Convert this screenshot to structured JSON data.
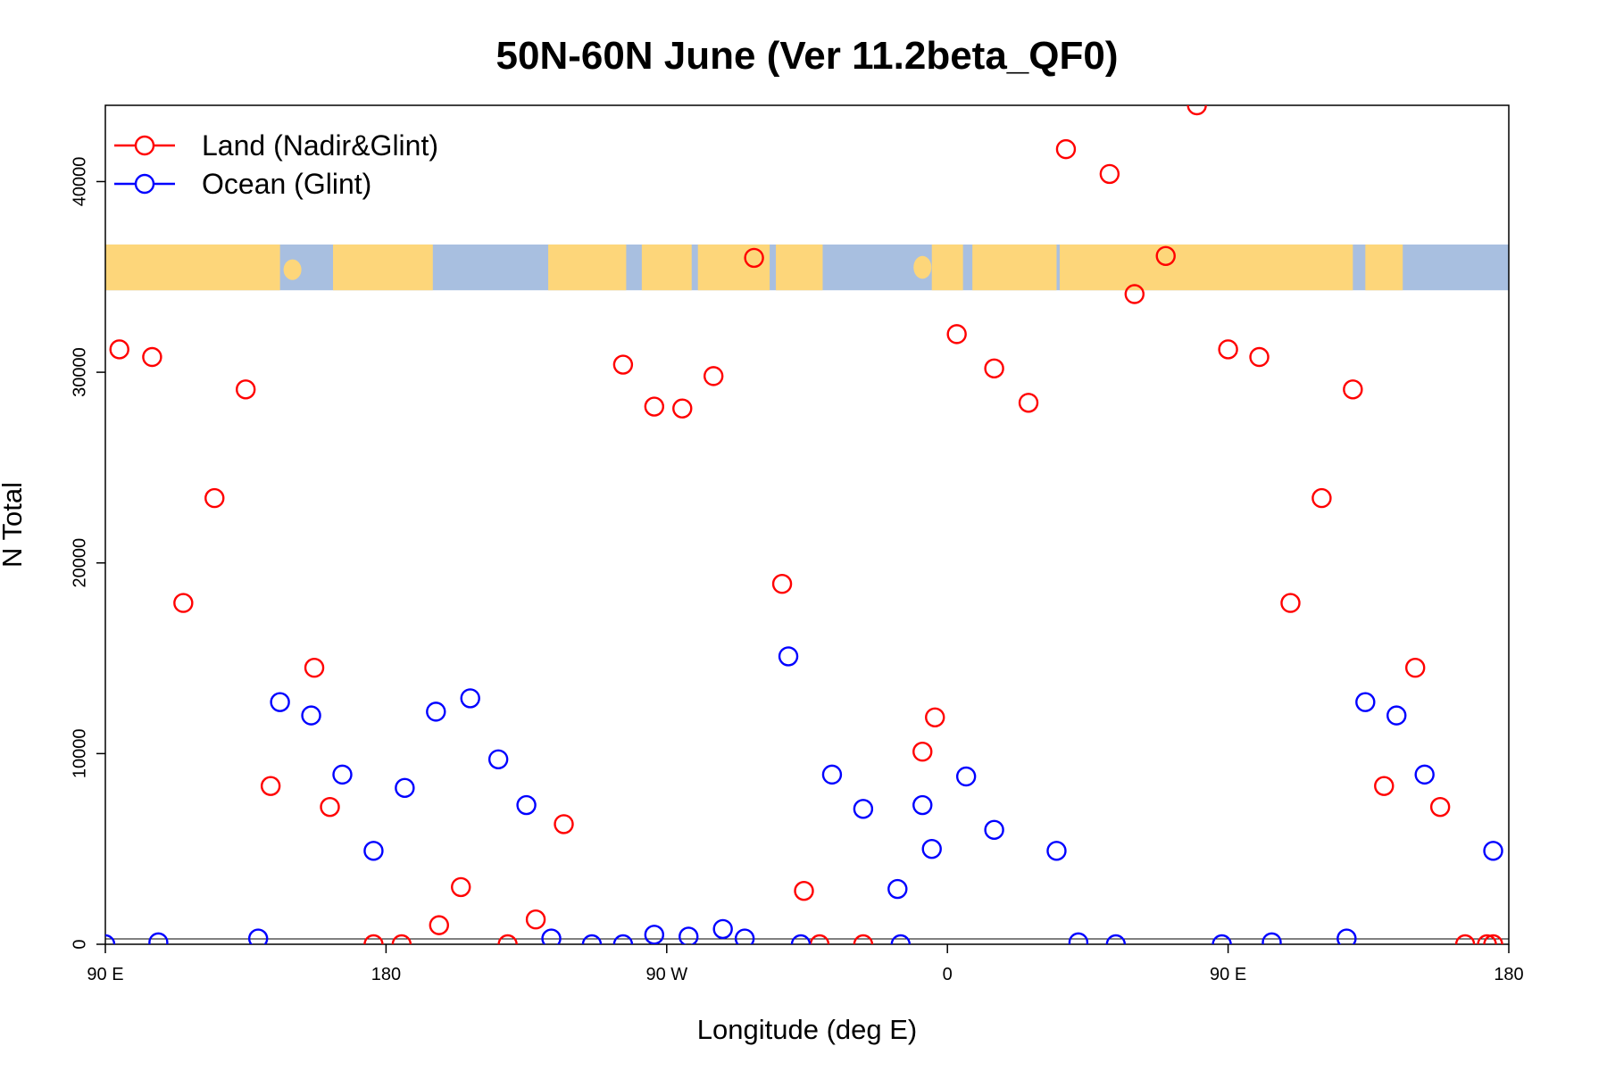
{
  "chart_data": {
    "type": "scatter",
    "title": "50N-60N June (Ver 11.2beta_QF0)",
    "xlabel": "Longitude (deg E)",
    "ylabel": "N Total",
    "xlim": [
      90,
      540
    ],
    "ylim": [
      0,
      44000
    ],
    "x_ticks": [
      {
        "value": 90,
        "label": "90 E"
      },
      {
        "value": 180,
        "label": "180"
      },
      {
        "value": 270,
        "label": "90 W"
      },
      {
        "value": 360,
        "label": "0"
      },
      {
        "value": 450,
        "label": "90 E"
      },
      {
        "value": 540,
        "label": "180"
      }
    ],
    "y_ticks": [
      {
        "value": 0,
        "label": "0"
      },
      {
        "value": 10000,
        "label": "10000"
      },
      {
        "value": 20000,
        "label": "20000"
      },
      {
        "value": 30000,
        "label": "30000"
      },
      {
        "value": 40000,
        "label": "40000"
      }
    ],
    "legend_position": "top-left",
    "map_strip": {
      "description": "world map band 50N-60N",
      "y_range": [
        34300,
        36700
      ],
      "land_color": "#fdd67a",
      "ocean_color": "#a8bfe0"
    },
    "series": [
      {
        "name": "Land (Nadir&Glint)",
        "color": "#ff0000",
        "x": [
          94.5,
          105,
          115,
          125,
          135,
          143,
          157,
          162,
          176,
          185,
          197,
          204,
          219,
          228,
          237,
          256,
          266,
          275,
          285,
          298,
          307,
          314,
          319,
          333,
          352,
          356,
          363,
          375,
          386,
          398,
          412,
          420,
          430,
          440,
          450,
          460,
          470,
          480,
          490,
          500,
          510,
          518,
          526,
          533,
          535
        ],
        "y": [
          31200,
          30800,
          17900,
          23400,
          29100,
          8300,
          14500,
          7200,
          0,
          0,
          1000,
          3000,
          0,
          1300,
          6300,
          30400,
          28200,
          28100,
          29800,
          36000,
          18900,
          2800,
          0,
          0,
          10100,
          11900,
          32000,
          30200,
          28400,
          41700,
          40400,
          34100,
          36100,
          44000,
          31200,
          30800,
          17900,
          23400,
          29100,
          8300,
          14500,
          7200,
          0,
          0,
          0
        ]
      },
      {
        "name": "Ocean (Glint)",
        "color": "#0000ff",
        "x": [
          90,
          107,
          139,
          146,
          156,
          166,
          176,
          186,
          196,
          207,
          216,
          225,
          233,
          246,
          256,
          266,
          277,
          288,
          295,
          309,
          313,
          323,
          333,
          344,
          345,
          352,
          355,
          366,
          375,
          395,
          402,
          414,
          448,
          464,
          488,
          494,
          504,
          513,
          535
        ],
        "y": [
          0,
          100,
          300,
          12700,
          12000,
          8900,
          4900,
          8200,
          12200,
          12900,
          9700,
          7300,
          300,
          0,
          0,
          500,
          400,
          800,
          300,
          15100,
          0,
          8900,
          7100,
          2900,
          0,
          7300,
          5000,
          8800,
          6000,
          4900,
          100,
          0,
          0,
          100,
          300,
          12700,
          12000,
          8900,
          4900
        ]
      }
    ]
  }
}
